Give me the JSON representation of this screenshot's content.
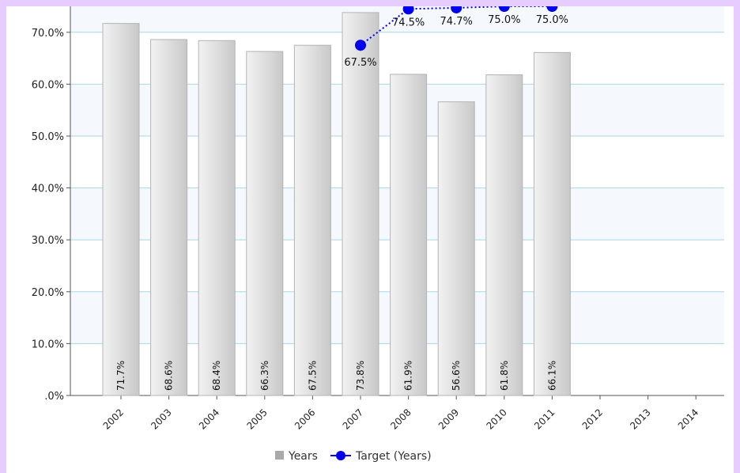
{
  "chart_data": {
    "type": "bar",
    "title": "",
    "xlabel": "",
    "ylabel": "",
    "categories": [
      "2002",
      "2003",
      "2004",
      "2005",
      "2006",
      "2007",
      "2008",
      "2009",
      "2010",
      "2011",
      "2012",
      "2013",
      "2014"
    ],
    "ylim": [
      0,
      75
    ],
    "yticks": [
      ".0%",
      "10.0%",
      "20.0%",
      "30.0%",
      "40.0%",
      "50.0%",
      "60.0%",
      "70.0%"
    ],
    "grid": true,
    "legend_position": "bottom-center",
    "series": [
      {
        "name": "Years",
        "kind": "bar",
        "color": "#a9a9a9",
        "values": [
          71.7,
          68.6,
          68.4,
          66.3,
          67.5,
          73.8,
          61.9,
          56.6,
          61.8,
          66.1,
          null,
          null,
          null
        ],
        "labels": [
          "71.7%",
          "68.6%",
          "68.4%",
          "66.3%",
          "67.5%",
          "73.8%",
          "61.9%",
          "56.6%",
          "61.8%",
          "66.1%",
          "",
          "",
          ""
        ]
      },
      {
        "name": "Target (Years)",
        "kind": "line",
        "color": "#0000ee",
        "style": "dotted",
        "values": [
          null,
          null,
          null,
          null,
          null,
          67.5,
          74.5,
          74.7,
          75.0,
          75.0,
          null,
          null,
          null
        ],
        "labels": [
          "",
          "",
          "",
          "",
          "",
          "67.5%",
          "74.5%",
          "74.7%",
          "75.0%",
          "75.0%",
          "",
          "",
          ""
        ]
      }
    ]
  }
}
